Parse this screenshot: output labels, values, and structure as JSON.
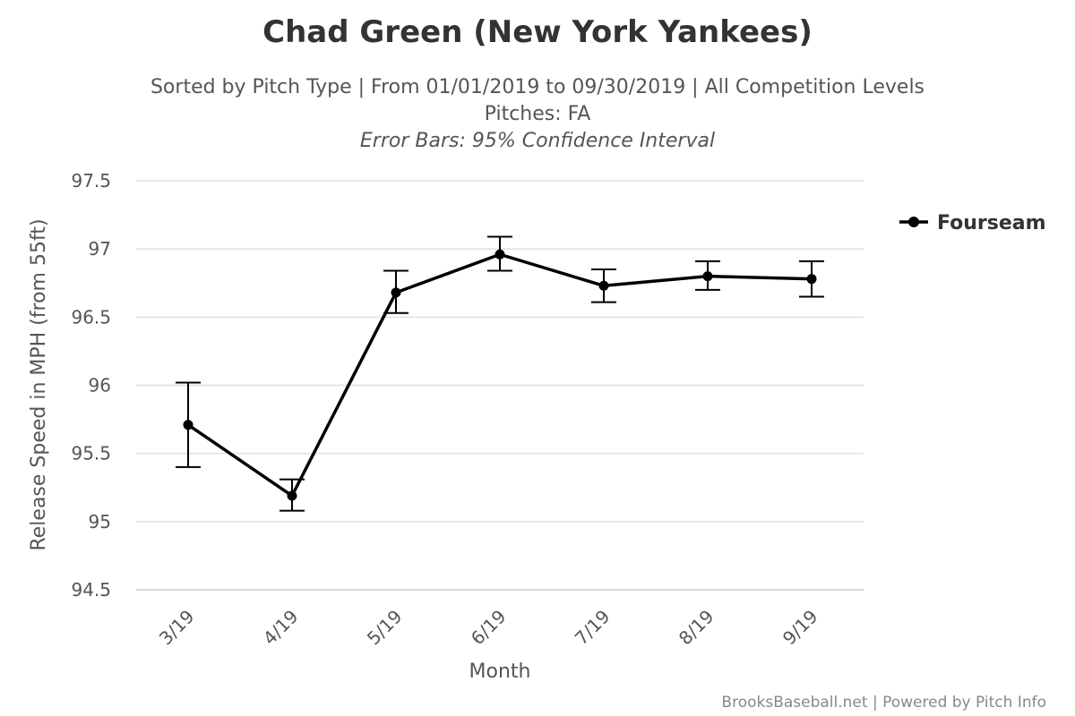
{
  "chart_data": {
    "type": "line",
    "title": "Chad Green (New York Yankees)",
    "subtitle_lines": [
      "Sorted by Pitch Type | From 01/01/2019 to 09/30/2019 | All Competition Levels",
      "Pitches: FA"
    ],
    "error_bar_note": "Error Bars: 95% Confidence Interval",
    "xlabel": "Month",
    "ylabel": "Release Speed in MPH (from 55ft)",
    "categories": [
      "3/19",
      "4/19",
      "5/19",
      "6/19",
      "7/19",
      "8/19",
      "9/19"
    ],
    "yticks": [
      "94.5",
      "95",
      "95.5",
      "96",
      "96.5",
      "97",
      "97.5"
    ],
    "ylim": [
      94.5,
      97.5
    ],
    "grid": true,
    "legend_position": "right",
    "series": [
      {
        "name": "Fourseam",
        "color": "#000000",
        "values": [
          95.71,
          95.19,
          96.68,
          96.96,
          96.73,
          96.8,
          96.78
        ],
        "error_low": [
          95.4,
          95.08,
          96.53,
          96.84,
          96.61,
          96.7,
          96.65
        ],
        "error_high": [
          96.02,
          95.31,
          96.84,
          97.09,
          96.85,
          96.91,
          96.91
        ]
      }
    ],
    "credits": "BrooksBaseball.net | Powered by Pitch Info"
  }
}
